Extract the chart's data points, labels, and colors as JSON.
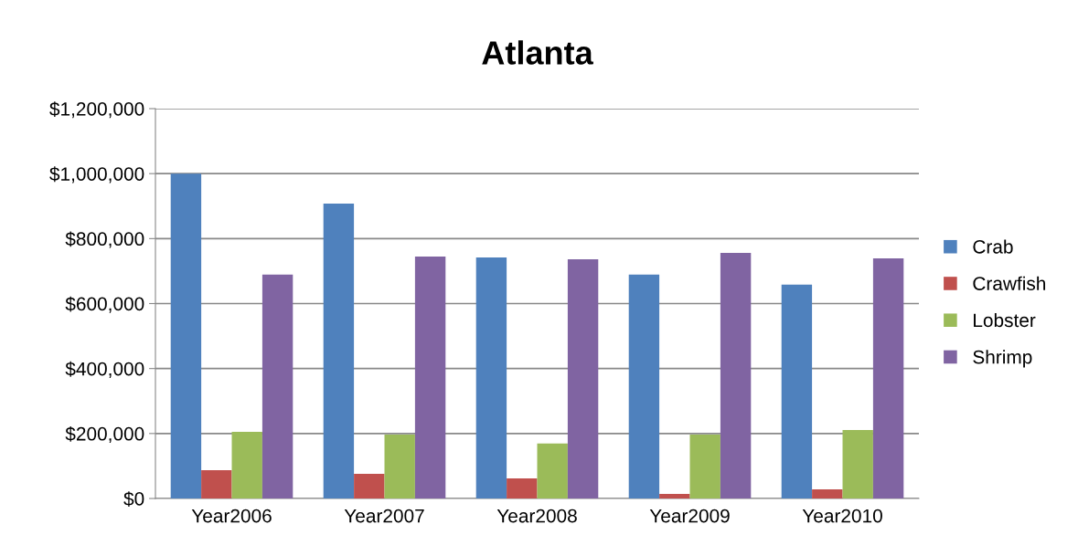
{
  "chart_data": {
    "type": "bar",
    "title": "Atlanta",
    "categories": [
      "Year2006",
      "Year2007",
      "Year2008",
      "Year2009",
      "Year2010"
    ],
    "series": [
      {
        "name": "Crab",
        "color": "#4f81bd",
        "values": [
          1000000,
          908000,
          742000,
          689000,
          658000
        ]
      },
      {
        "name": "Crawfish",
        "color": "#c0504d",
        "values": [
          87000,
          76000,
          62000,
          14000,
          28000
        ]
      },
      {
        "name": "Lobster",
        "color": "#9bbb59",
        "values": [
          205000,
          197000,
          169000,
          197000,
          211000
        ]
      },
      {
        "name": "Shrimp",
        "color": "#8064a2",
        "values": [
          689000,
          745000,
          736000,
          756000,
          739000
        ]
      }
    ],
    "ylim": [
      0,
      1200000
    ],
    "yticks": [
      {
        "value": 0,
        "label": "$0"
      },
      {
        "value": 200000,
        "label": "$200,000"
      },
      {
        "value": 400000,
        "label": "$400,000"
      },
      {
        "value": 600000,
        "label": "$600,000"
      },
      {
        "value": 800000,
        "label": "$800,000"
      },
      {
        "value": 1000000,
        "label": "$1,000,000"
      },
      {
        "value": 1200000,
        "label": "$1,200,000"
      }
    ],
    "grid": "y",
    "legend": "right"
  }
}
